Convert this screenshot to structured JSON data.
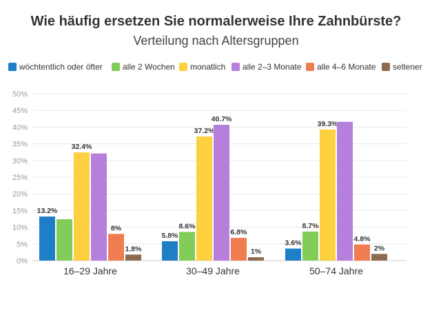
{
  "chart_data": {
    "type": "bar",
    "title": "Wie häufig ersetzen Sie normalerweise Ihre Zahnbürste?",
    "subtitle": "Verteilung nach Altersgruppen",
    "categories": [
      "16–29 Jahre",
      "30–49 Jahre",
      "50–74 Jahre"
    ],
    "ylim": [
      0,
      50
    ],
    "yticks": [
      "0%",
      "5%",
      "10%",
      "15%",
      "20%",
      "25%",
      "30%",
      "35%",
      "40%",
      "45%",
      "50%"
    ],
    "grid": true,
    "legend_position": "top",
    "series": [
      {
        "name": "wöchtentlich oder öfter",
        "color": "#1f7fc6",
        "values": [
          13.2,
          5.8,
          3.6
        ],
        "labels": [
          "13.2%",
          "5.8%",
          "3.6%"
        ]
      },
      {
        "name": "alle 2 Wochen",
        "color": "#82cc5a",
        "values": [
          12.4,
          8.6,
          8.7
        ],
        "labels": [
          "",
          "8.6%",
          "8.7%"
        ]
      },
      {
        "name": "monatlich",
        "color": "#fcd03e",
        "values": [
          32.4,
          37.2,
          39.3
        ],
        "labels": [
          "32.4%",
          "37.2%",
          "39.3%"
        ]
      },
      {
        "name": "alle 2–3 Monate",
        "color": "#b57fdb",
        "values": [
          32.1,
          40.7,
          41.6
        ],
        "labels": [
          "",
          "40.7%",
          ""
        ]
      },
      {
        "name": "alle 4–6 Monate",
        "color": "#f07d4f",
        "values": [
          8,
          6.8,
          4.8
        ],
        "labels": [
          "8%",
          "6.8%",
          "4.8%"
        ]
      },
      {
        "name": "seltener",
        "color": "#8c6a4f",
        "values": [
          1.8,
          1,
          2
        ],
        "labels": [
          "1.8%",
          "1%",
          "2%"
        ]
      }
    ]
  }
}
